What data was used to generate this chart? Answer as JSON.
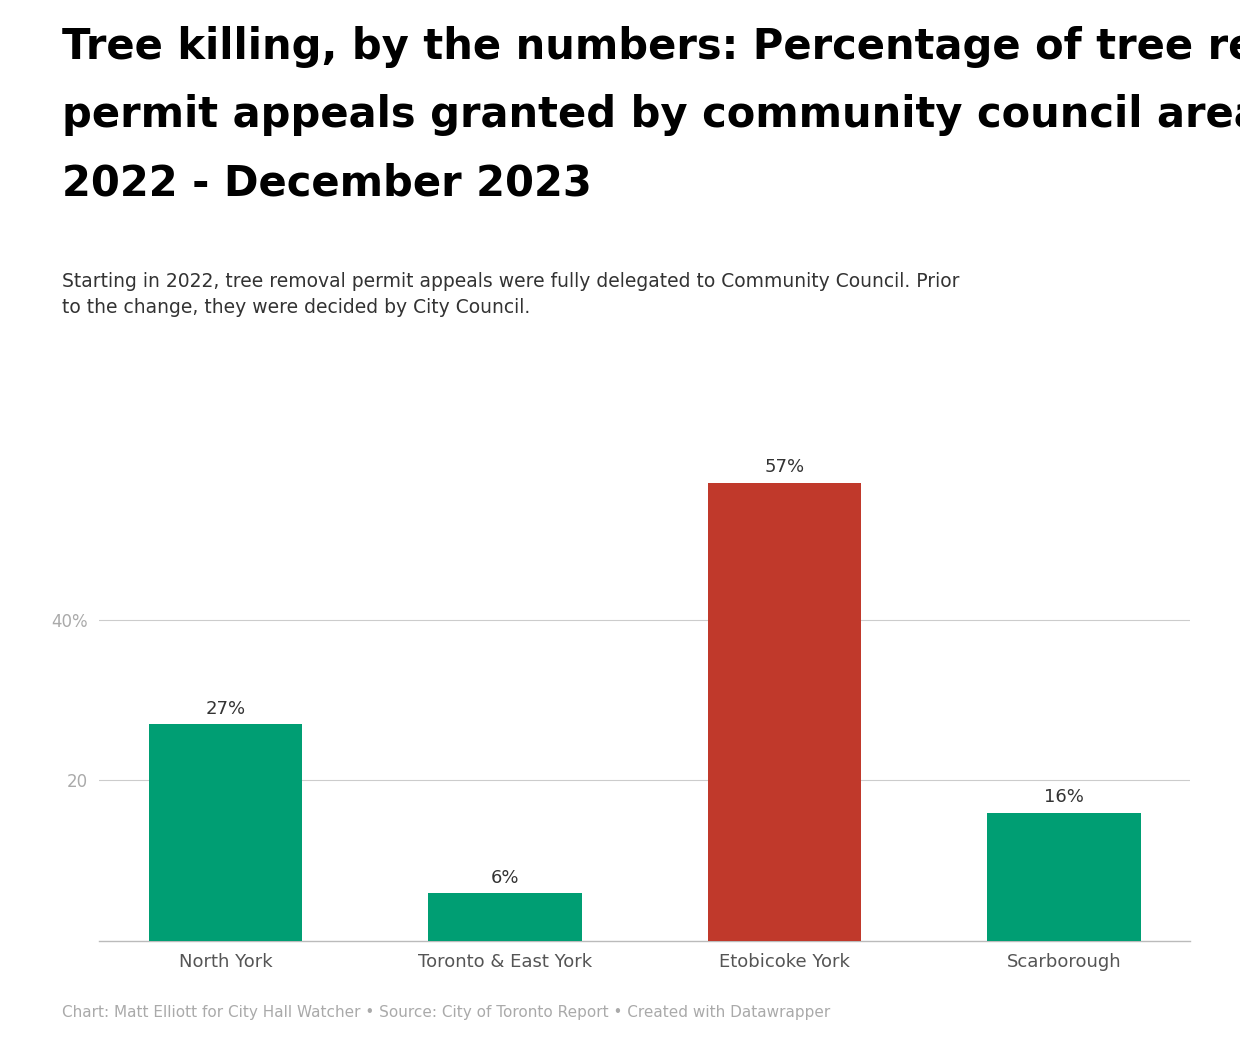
{
  "title_line1": "Tree killing, by the numbers: Percentage of tree removal",
  "title_line2": "permit appeals granted by community council area, May",
  "title_line3": "2022 - December 2023",
  "subtitle": "Starting in 2022, tree removal permit appeals were fully delegated to Community Council. Prior\nto the change, they were decided by City Council.",
  "caption": "Chart: Matt Elliott for City Hall Watcher • Source: City of Toronto Report • Created with Datawrapper",
  "categories": [
    "North York",
    "Toronto & East York",
    "Etobicoke York",
    "Scarborough"
  ],
  "values": [
    27,
    6,
    57,
    16
  ],
  "bar_colors": [
    "#009E73",
    "#009E73",
    "#C0392B",
    "#009E73"
  ],
  "value_labels": [
    "27%",
    "6%",
    "57%",
    "16%"
  ],
  "yticks": [
    20,
    40
  ],
  "ytick_labels": [
    "20",
    "40%"
  ],
  "ylim": [
    0,
    65
  ],
  "background_color": "#ffffff",
  "title_fontsize": 30,
  "subtitle_fontsize": 13.5,
  "caption_fontsize": 11,
  "bar_label_fontsize": 13,
  "xtick_fontsize": 13,
  "ytick_fontsize": 12,
  "title_color": "#000000",
  "subtitle_color": "#333333",
  "caption_color": "#aaaaaa",
  "grid_color": "#cccccc",
  "xtick_color": "#555555",
  "ytick_color": "#aaaaaa"
}
